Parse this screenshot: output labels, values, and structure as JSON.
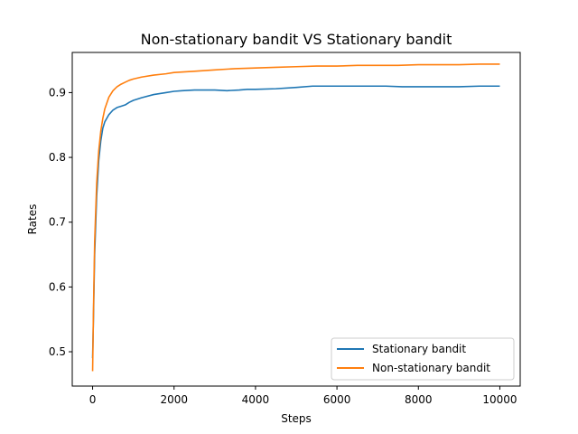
{
  "chart_data": {
    "type": "line",
    "title": "Non-stationary bandit VS Stationary bandit",
    "xlabel": "Steps",
    "ylabel": "Rates",
    "xlim": [
      -500,
      10500
    ],
    "ylim": [
      0.447,
      0.962
    ],
    "xticks": [
      0,
      2000,
      4000,
      6000,
      8000,
      10000
    ],
    "xtick_labels": [
      "0",
      "2000",
      "4000",
      "6000",
      "8000",
      "10000"
    ],
    "yticks": [
      0.5,
      0.6,
      0.7,
      0.8,
      0.9
    ],
    "ytick_labels": [
      "0.5",
      "0.6",
      "0.7",
      "0.8",
      "0.9"
    ],
    "grid": false,
    "legend_position": "lower-right",
    "series": [
      {
        "name": "Stationary bandit",
        "color": "#1f77b4",
        "x": [
          0,
          20,
          50,
          100,
          150,
          200,
          250,
          300,
          400,
          500,
          600,
          700,
          800,
          900,
          1000,
          1200,
          1500,
          1800,
          2000,
          2200,
          2500,
          2800,
          3000,
          3300,
          3600,
          3800,
          4000,
          4500,
          5000,
          5400,
          6000,
          6500,
          7000,
          7200,
          7600,
          8000,
          8500,
          9000,
          9500,
          10000
        ],
        "y": [
          0.49,
          0.55,
          0.65,
          0.74,
          0.795,
          0.825,
          0.845,
          0.855,
          0.866,
          0.873,
          0.877,
          0.879,
          0.881,
          0.885,
          0.888,
          0.892,
          0.897,
          0.9,
          0.902,
          0.903,
          0.904,
          0.904,
          0.904,
          0.903,
          0.904,
          0.905,
          0.905,
          0.906,
          0.908,
          0.91,
          0.91,
          0.91,
          0.91,
          0.91,
          0.909,
          0.909,
          0.909,
          0.909,
          0.91,
          0.91
        ]
      },
      {
        "name": "Non-stationary bandit",
        "color": "#ff7f0e",
        "x": [
          0,
          20,
          50,
          100,
          150,
          200,
          250,
          300,
          400,
          500,
          600,
          700,
          800,
          900,
          1000,
          1200,
          1500,
          1800,
          2000,
          2500,
          3000,
          3500,
          4000,
          4500,
          5000,
          5500,
          6000,
          6500,
          7000,
          7500,
          8000,
          8500,
          9000,
          9500,
          10000
        ],
        "y": [
          0.47,
          0.56,
          0.67,
          0.76,
          0.81,
          0.84,
          0.86,
          0.875,
          0.893,
          0.903,
          0.909,
          0.913,
          0.916,
          0.919,
          0.921,
          0.924,
          0.927,
          0.929,
          0.931,
          0.933,
          0.935,
          0.937,
          0.938,
          0.939,
          0.94,
          0.941,
          0.941,
          0.942,
          0.942,
          0.942,
          0.943,
          0.943,
          0.943,
          0.944,
          0.944
        ]
      }
    ]
  }
}
